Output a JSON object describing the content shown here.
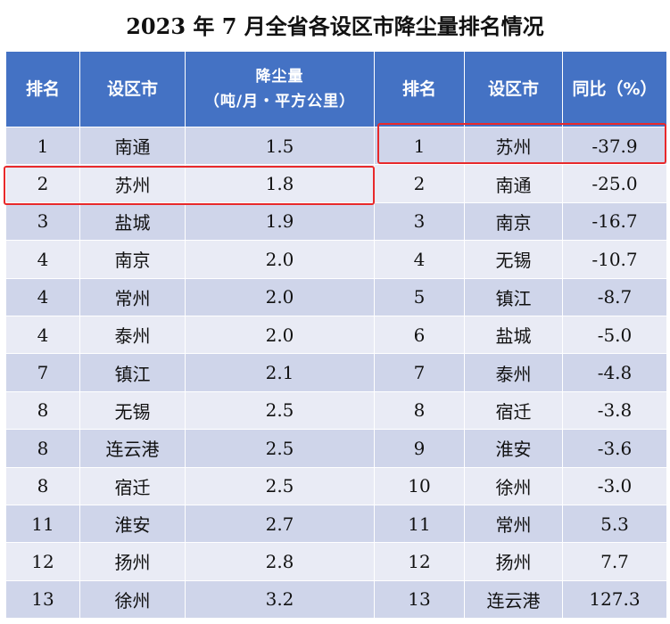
{
  "title": "2023 年 7 月全省各设区市降尘量排名情况",
  "headers": {
    "rank": "排名",
    "city": "设区市",
    "dust_main": "降尘量",
    "dust_unit": "（吨/月・平方公里）",
    "rank2": "排名",
    "city2": "设区市",
    "yoy": "同比（%）"
  },
  "left_rows": [
    {
      "rank": "1",
      "city": "南通",
      "dust": "1.5"
    },
    {
      "rank": "2",
      "city": "苏州",
      "dust": "1.8"
    },
    {
      "rank": "3",
      "city": "盐城",
      "dust": "1.9"
    },
    {
      "rank": "4",
      "city": "南京",
      "dust": "2.0"
    },
    {
      "rank": "4",
      "city": "常州",
      "dust": "2.0"
    },
    {
      "rank": "4",
      "city": "泰州",
      "dust": "2.0"
    },
    {
      "rank": "7",
      "city": "镇江",
      "dust": "2.1"
    },
    {
      "rank": "8",
      "city": "无锡",
      "dust": "2.5"
    },
    {
      "rank": "8",
      "city": "连云港",
      "dust": "2.5"
    },
    {
      "rank": "8",
      "city": "宿迁",
      "dust": "2.5"
    },
    {
      "rank": "11",
      "city": "淮安",
      "dust": "2.7"
    },
    {
      "rank": "12",
      "city": "扬州",
      "dust": "2.8"
    },
    {
      "rank": "13",
      "city": "徐州",
      "dust": "3.2"
    }
  ],
  "right_rows": [
    {
      "rank": "1",
      "city": "苏州",
      "yoy": "-37.9"
    },
    {
      "rank": "2",
      "city": "南通",
      "yoy": "-25.0"
    },
    {
      "rank": "3",
      "city": "南京",
      "yoy": "-16.7"
    },
    {
      "rank": "4",
      "city": "无锡",
      "yoy": "-10.7"
    },
    {
      "rank": "5",
      "city": "镇江",
      "yoy": "-8.7"
    },
    {
      "rank": "6",
      "city": "盐城",
      "yoy": "-5.0"
    },
    {
      "rank": "7",
      "city": "泰州",
      "yoy": "-4.8"
    },
    {
      "rank": "8",
      "city": "宿迁",
      "yoy": "-3.8"
    },
    {
      "rank": "9",
      "city": "淮安",
      "yoy": "-3.6"
    },
    {
      "rank": "10",
      "city": "徐州",
      "yoy": "-3.0"
    },
    {
      "rank": "11",
      "city": "常州",
      "yoy": "5.3"
    },
    {
      "rank": "12",
      "city": "扬州",
      "yoy": "7.7"
    },
    {
      "rank": "13",
      "city": "连云港",
      "yoy": "127.3"
    }
  ],
  "colors": {
    "header": "#4472c4",
    "row_odd": "#cfd5ea",
    "row_even": "#e9ebf5",
    "highlight": "#e8292b"
  }
}
